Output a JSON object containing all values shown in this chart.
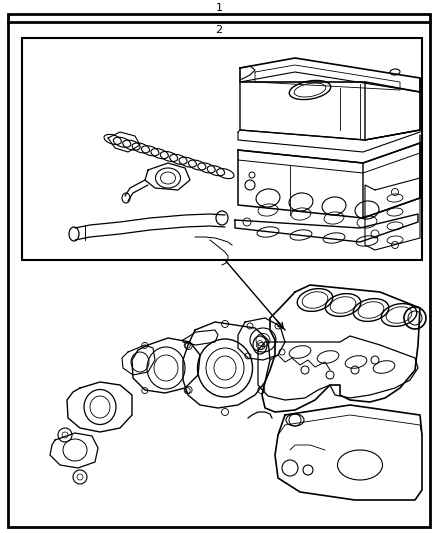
{
  "bg_color": "#ffffff",
  "lc": "#000000",
  "fig_width": 4.38,
  "fig_height": 5.33,
  "label_1": "1",
  "label_2": "2"
}
